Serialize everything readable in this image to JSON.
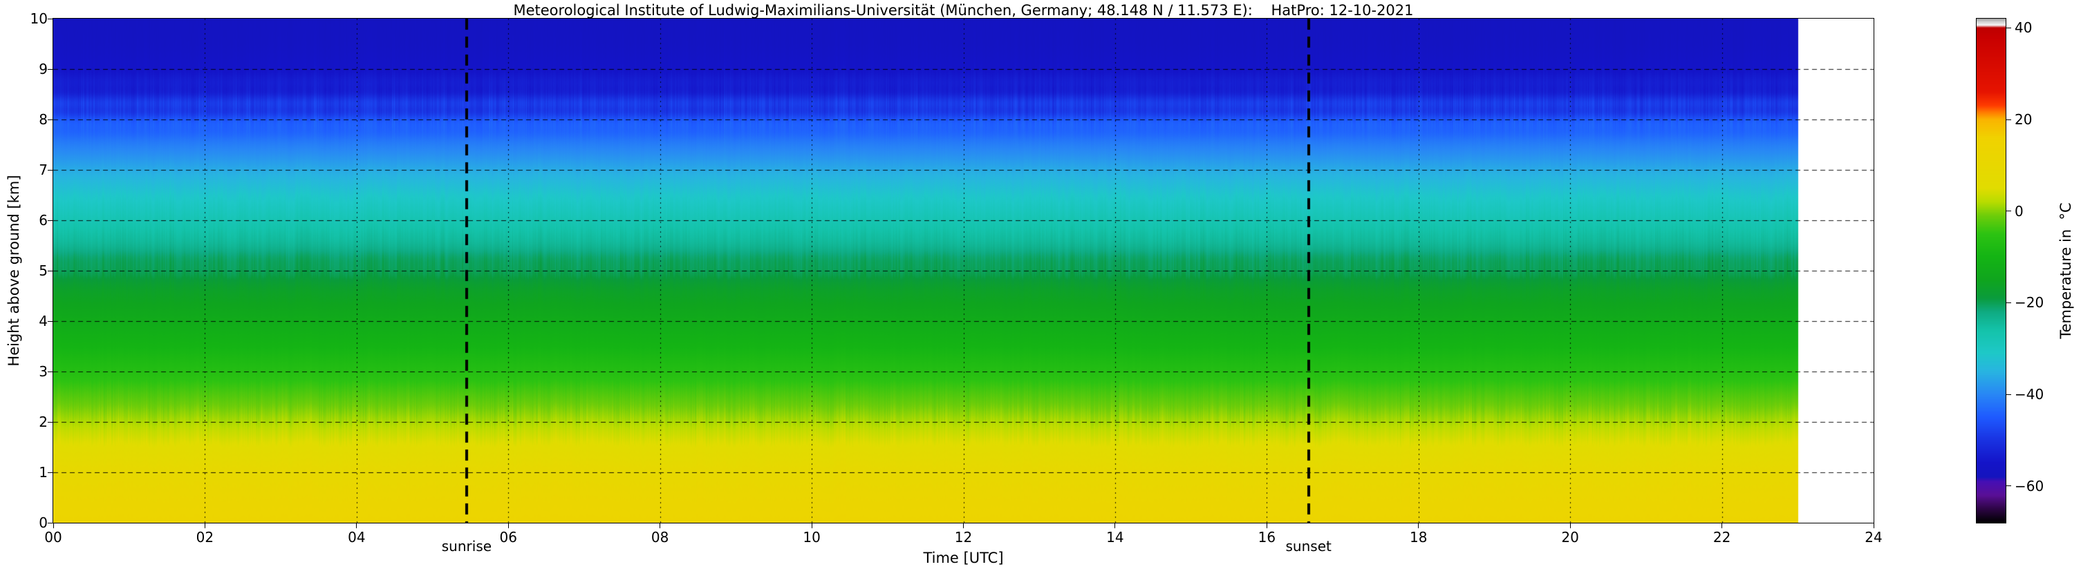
{
  "title": "Meteorological Institute of Ludwig-Maximilians-Universität (München, Germany; 48.148 N / 11.573 E):    HatPro: 12-10-2021",
  "chart_data": {
    "type": "heatmap",
    "xlabel": "Time [UTC]",
    "ylabel": "Height above ground [km]",
    "x_range_hours": [
      0,
      24
    ],
    "y_range_km": [
      0,
      10
    ],
    "data_end_hour": 23,
    "grid": true,
    "x_ticks": [
      {
        "hour": 0,
        "label": "00"
      },
      {
        "hour": 2,
        "label": "02"
      },
      {
        "hour": 4,
        "label": "04"
      },
      {
        "hour": 6,
        "label": "06"
      },
      {
        "hour": 8,
        "label": "08"
      },
      {
        "hour": 10,
        "label": "10"
      },
      {
        "hour": 12,
        "label": "12"
      },
      {
        "hour": 14,
        "label": "14"
      },
      {
        "hour": 16,
        "label": "16"
      },
      {
        "hour": 18,
        "label": "18"
      },
      {
        "hour": 20,
        "label": "20"
      },
      {
        "hour": 22,
        "label": "22"
      },
      {
        "hour": 24,
        "label": "24"
      }
    ],
    "y_ticks": [
      {
        "km": 0,
        "label": "0"
      },
      {
        "km": 1,
        "label": "1"
      },
      {
        "km": 2,
        "label": "2"
      },
      {
        "km": 3,
        "label": "3"
      },
      {
        "km": 4,
        "label": "4"
      },
      {
        "km": 5,
        "label": "5"
      },
      {
        "km": 6,
        "label": "6"
      },
      {
        "km": 7,
        "label": "7"
      },
      {
        "km": 8,
        "label": "8"
      },
      {
        "km": 9,
        "label": "9"
      },
      {
        "km": 10,
        "label": "10"
      }
    ],
    "annotations": [
      {
        "hour": 5.45,
        "label": "sunrise"
      },
      {
        "hour": 16.55,
        "label": "sunset"
      }
    ],
    "colorbar": {
      "label": "Temperature in  °C",
      "range": [
        -68,
        42
      ],
      "ticks": [
        {
          "value": 40,
          "label": "40"
        },
        {
          "value": 20,
          "label": "20"
        },
        {
          "value": 0,
          "label": "0"
        },
        {
          "value": -20,
          "label": "−20"
        },
        {
          "value": -40,
          "label": "−40"
        },
        {
          "value": -60,
          "label": "−60"
        }
      ],
      "stops": [
        [
          -68,
          "#000000"
        ],
        [
          -65,
          "#2d0545"
        ],
        [
          -62,
          "#5a0f96"
        ],
        [
          -59,
          "#460fb4"
        ],
        [
          -58,
          "#1414be"
        ],
        [
          -55,
          "#1414c8"
        ],
        [
          -50,
          "#1932e1"
        ],
        [
          -45,
          "#1e5aff"
        ],
        [
          -40,
          "#2887f5"
        ],
        [
          -35,
          "#28b4e1"
        ],
        [
          -31,
          "#1ec8c8"
        ],
        [
          -26,
          "#14c3aa"
        ],
        [
          -22,
          "#0fab82"
        ],
        [
          -19,
          "#0a9b3c"
        ],
        [
          -15,
          "#0fa51e"
        ],
        [
          -10,
          "#14b414"
        ],
        [
          -5,
          "#2cc312"
        ],
        [
          -1,
          "#6ecd0a"
        ],
        [
          2,
          "#b9dc00"
        ],
        [
          5,
          "#e1dc00"
        ],
        [
          16,
          "#f0d200"
        ],
        [
          20,
          "#fab400"
        ],
        [
          21.5,
          "#ff7d00"
        ],
        [
          23,
          "#ff3c00"
        ],
        [
          26,
          "#e61400"
        ],
        [
          38,
          "#c80000"
        ],
        [
          40,
          "#be0000"
        ],
        [
          40.6,
          "#f5f5f5"
        ],
        [
          41.3,
          "#d2d2d2"
        ],
        [
          42,
          "#a0a0a0"
        ]
      ]
    },
    "profile": {
      "heights_km": [
        0,
        0.5,
        1,
        1.5,
        2,
        2.5,
        3,
        3.5,
        4,
        4.5,
        5,
        5.5,
        6,
        6.5,
        7,
        7.5,
        8,
        8.25,
        8.5,
        9,
        9.5,
        10
      ],
      "temperature_C": [
        13.5,
        12,
        9.5,
        5.5,
        1.5,
        -2.5,
        -6.5,
        -10,
        -13,
        -16,
        -19.5,
        -23.5,
        -27.5,
        -31.5,
        -36,
        -41,
        -46,
        -49,
        -52,
        -55,
        -56.5,
        -57
      ]
    }
  }
}
